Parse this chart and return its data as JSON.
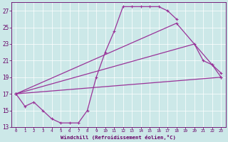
{
  "xlabel": "Windchill (Refroidissement éolien,°C)",
  "background_color": "#cce8e8",
  "line_color": "#993399",
  "xlim": [
    -0.5,
    23.5
  ],
  "ylim": [
    13,
    28
  ],
  "xticks": [
    0,
    1,
    2,
    3,
    4,
    5,
    6,
    7,
    8,
    9,
    10,
    11,
    12,
    13,
    14,
    15,
    16,
    17,
    18,
    19,
    20,
    21,
    22,
    23
  ],
  "yticks": [
    13,
    15,
    17,
    19,
    21,
    23,
    25,
    27
  ],
  "line1_x": [
    0,
    1,
    2,
    3,
    4,
    5,
    6,
    7,
    8,
    9,
    10,
    11,
    12,
    13,
    14,
    15,
    16,
    17,
    18
  ],
  "line1_y": [
    17.0,
    15.5,
    16.0,
    15.0,
    14.0,
    13.5,
    13.5,
    13.5,
    15.0,
    19.0,
    22.0,
    24.5,
    27.5,
    27.5,
    27.5,
    27.5,
    27.5,
    27.0,
    26.0
  ],
  "line2_x": [
    0,
    23
  ],
  "line2_y": [
    17.0,
    19.0
  ],
  "line3_x": [
    0,
    20,
    21,
    22,
    23
  ],
  "line3_y": [
    17.0,
    23.0,
    21.0,
    20.5,
    19.5
  ],
  "line4_x": [
    0,
    18,
    22,
    23
  ],
  "line4_y": [
    17.0,
    25.5,
    20.5,
    19.0
  ]
}
